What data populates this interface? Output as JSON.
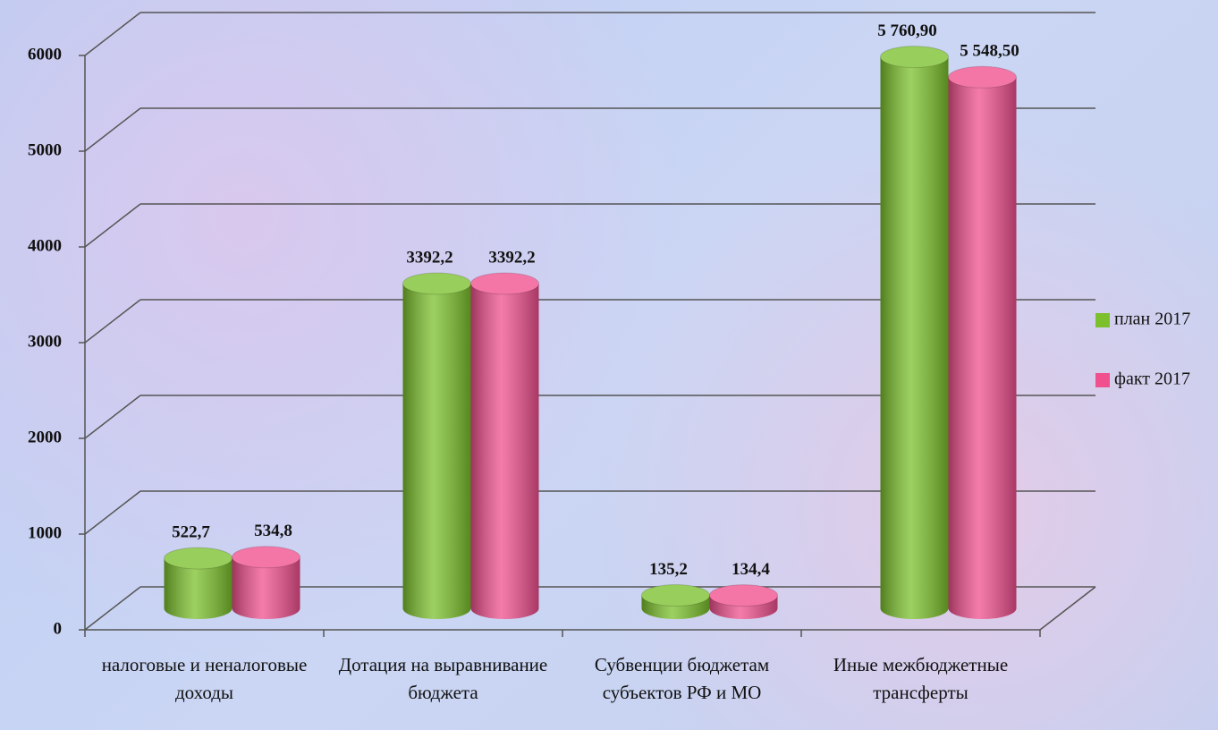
{
  "chart_data": {
    "type": "bar3d",
    "categories": [
      "налоговые и неналоговые доходы",
      "Дотация на выравнивание бюджета",
      "Субвенции бюджетам субъектов РФ и МО",
      "Иные межбюджетные трансферты"
    ],
    "series": [
      {
        "name": "план 2017",
        "color": "#7cc12d",
        "values": [
          522.7,
          3392.2,
          135.2,
          5760.9
        ],
        "value_labels": [
          "522,7",
          "3392,2",
          "135,2",
          "5 760,90"
        ]
      },
      {
        "name": "факт 2017",
        "color": "#f0508e",
        "values": [
          534.8,
          3392.2,
          134.4,
          5548.5
        ],
        "value_labels": [
          "534,8",
          "3392,2",
          "134,4",
          "5 548,50"
        ]
      }
    ],
    "ylim": [
      0,
      6000
    ],
    "yticks": [
      0,
      1000,
      2000,
      3000,
      4000,
      5000,
      6000
    ],
    "grid": true,
    "legend": "right"
  }
}
